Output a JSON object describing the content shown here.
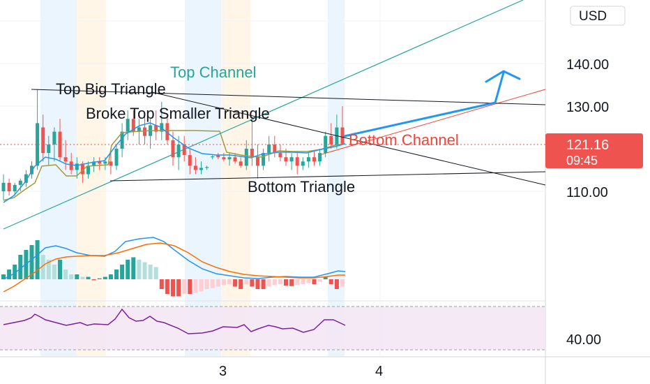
{
  "currency_button": "USD",
  "price_tag": {
    "price": "121.16",
    "countdown": "09:45"
  },
  "annotations": {
    "top_channel": "Top Channel",
    "top_big_triangle": "Top Big Triangle",
    "broke_top_smaller_triangle": "Broke Top Smaller Triangle",
    "bottom_channel": "Bottom Channel",
    "bottom_triangle": "Bottom Triangle"
  },
  "colors": {
    "bull": "#26a69a",
    "bear": "#ef5350",
    "teal_line": "#26a69a",
    "blue_arrow": "#2196f3",
    "black_line": "#131722",
    "red_line": "#f44336",
    "olive_line": "#a19a3c",
    "blue_ema": "#2196f3",
    "macd_line": "#2196f3",
    "signal_line": "#ff6d00",
    "rsi_line": "#7b1fa2",
    "rsi_band": "#f3e5f5",
    "session_blue": "#e3f2fd",
    "session_orange": "#fff3e0",
    "price_tag_bg": "#ef5350"
  },
  "chart_data": {
    "type": "candlestick",
    "price_axis": {
      "ticks": [
        "140.00",
        "130.00",
        "110.00"
      ],
      "range": [
        106,
        151
      ]
    },
    "rsi_axis": {
      "ticks": [
        "40.00"
      ]
    },
    "time_axis": {
      "ticks": [
        "3",
        "4"
      ]
    },
    "candles": [
      {
        "o": 110,
        "h": 114,
        "l": 108,
        "c": 112
      },
      {
        "o": 112,
        "h": 113,
        "l": 109,
        "c": 110
      },
      {
        "o": 110,
        "h": 112,
        "l": 109,
        "c": 111.5
      },
      {
        "o": 111.5,
        "h": 113,
        "l": 110,
        "c": 112.5
      },
      {
        "o": 112,
        "h": 115,
        "l": 111,
        "c": 114
      },
      {
        "o": 114,
        "h": 117,
        "l": 113,
        "c": 116
      },
      {
        "o": 116,
        "h": 134,
        "l": 115,
        "c": 126
      },
      {
        "o": 125,
        "h": 128,
        "l": 117,
        "c": 119
      },
      {
        "o": 119,
        "h": 123,
        "l": 116,
        "c": 121
      },
      {
        "o": 121,
        "h": 125,
        "l": 117,
        "c": 124
      },
      {
        "o": 124,
        "h": 127,
        "l": 117,
        "c": 118
      },
      {
        "o": 118,
        "h": 122,
        "l": 115,
        "c": 117
      },
      {
        "o": 117,
        "h": 119,
        "l": 114,
        "c": 115
      },
      {
        "o": 115,
        "h": 118,
        "l": 113,
        "c": 116.5
      },
      {
        "o": 116.5,
        "h": 117,
        "l": 112,
        "c": 114
      },
      {
        "o": 114,
        "h": 117,
        "l": 113,
        "c": 116
      },
      {
        "o": 116,
        "h": 118,
        "l": 114.5,
        "c": 117
      },
      {
        "o": 117,
        "h": 118,
        "l": 115,
        "c": 116.5
      },
      {
        "o": 116.5,
        "h": 118,
        "l": 115,
        "c": 117
      },
      {
        "o": 117,
        "h": 120,
        "l": 114,
        "c": 116
      },
      {
        "o": 116,
        "h": 121,
        "l": 115,
        "c": 120
      },
      {
        "o": 120,
        "h": 126,
        "l": 118,
        "c": 124
      },
      {
        "o": 124,
        "h": 129,
        "l": 122,
        "c": 127
      },
      {
        "o": 127,
        "h": 129,
        "l": 123,
        "c": 124
      },
      {
        "o": 124,
        "h": 127,
        "l": 121,
        "c": 125
      },
      {
        "o": 125,
        "h": 128,
        "l": 121,
        "c": 123
      },
      {
        "o": 123,
        "h": 127,
        "l": 120,
        "c": 125.5
      },
      {
        "o": 125.5,
        "h": 129,
        "l": 122,
        "c": 124
      },
      {
        "o": 124,
        "h": 131,
        "l": 122,
        "c": 126
      },
      {
        "o": 126,
        "h": 128,
        "l": 121,
        "c": 122
      },
      {
        "o": 122,
        "h": 124,
        "l": 116,
        "c": 118
      },
      {
        "o": 118,
        "h": 123,
        "l": 115,
        "c": 121
      },
      {
        "o": 121,
        "h": 123,
        "l": 117,
        "c": 118.5
      },
      {
        "o": 118.5,
        "h": 120,
        "l": 114,
        "c": 116
      },
      {
        "o": 116,
        "h": 118,
        "l": 114,
        "c": 115
      },
      {
        "o": 115,
        "h": 117,
        "l": 114,
        "c": 115.5
      },
      {
        "o": 115.5,
        "h": 116,
        "l": 115,
        "c": 115.7
      },
      {
        "o": 118,
        "h": 118.5,
        "l": 117.5,
        "c": 118.2
      },
      {
        "o": 118.5,
        "h": 119,
        "l": 117.5,
        "c": 118
      },
      {
        "o": 118,
        "h": 119,
        "l": 117,
        "c": 117.5
      },
      {
        "o": 117.5,
        "h": 119,
        "l": 116,
        "c": 118
      },
      {
        "o": 118,
        "h": 119,
        "l": 116.5,
        "c": 117
      },
      {
        "o": 117,
        "h": 118,
        "l": 115.5,
        "c": 116
      },
      {
        "o": 116,
        "h": 122,
        "l": 115,
        "c": 120
      },
      {
        "o": 120,
        "h": 127,
        "l": 116,
        "c": 118
      },
      {
        "o": 118,
        "h": 121,
        "l": 113,
        "c": 116
      },
      {
        "o": 116,
        "h": 120,
        "l": 115,
        "c": 119
      },
      {
        "o": 119,
        "h": 123,
        "l": 117,
        "c": 121
      },
      {
        "o": 121,
        "h": 123,
        "l": 118,
        "c": 119
      },
      {
        "o": 119,
        "h": 121,
        "l": 117,
        "c": 118
      },
      {
        "o": 118,
        "h": 120,
        "l": 116,
        "c": 117
      },
      {
        "o": 117,
        "h": 119,
        "l": 115,
        "c": 118
      },
      {
        "o": 118,
        "h": 119,
        "l": 114,
        "c": 116
      },
      {
        "o": 116,
        "h": 118,
        "l": 115,
        "c": 117
      },
      {
        "o": 117,
        "h": 119,
        "l": 115.5,
        "c": 118
      },
      {
        "o": 118,
        "h": 119.5,
        "l": 116,
        "c": 117
      },
      {
        "o": 117,
        "h": 120,
        "l": 116,
        "c": 119
      },
      {
        "o": 119,
        "h": 124,
        "l": 118,
        "c": 123
      },
      {
        "o": 123,
        "h": 126,
        "l": 120,
        "c": 121
      },
      {
        "o": 121,
        "h": 128,
        "l": 120,
        "c": 125
      },
      {
        "o": 125,
        "h": 130,
        "l": 121,
        "c": 121.16
      }
    ],
    "macd_histogram": [
      1,
      2,
      3,
      5,
      6,
      7,
      8,
      5,
      4,
      3,
      4,
      2,
      1,
      1,
      0.5,
      0.5,
      -0.2,
      0.2,
      0.5,
      1,
      2,
      3,
      4,
      4.5,
      4,
      3.5,
      3,
      2.5,
      -2,
      -3,
      -3.5,
      -3.5,
      -3,
      -3,
      -2.8,
      -2.5,
      -2,
      -1.8,
      -1.5,
      -1.2,
      -1,
      -1.5,
      -2,
      -1,
      -1.5,
      -2,
      -2,
      -1.5,
      -1.2,
      -1,
      -1.3,
      -1.4,
      -1.2,
      -1,
      -0.8,
      -1,
      -0.5,
      0.5,
      -1,
      -2,
      -1.5
    ]
  }
}
